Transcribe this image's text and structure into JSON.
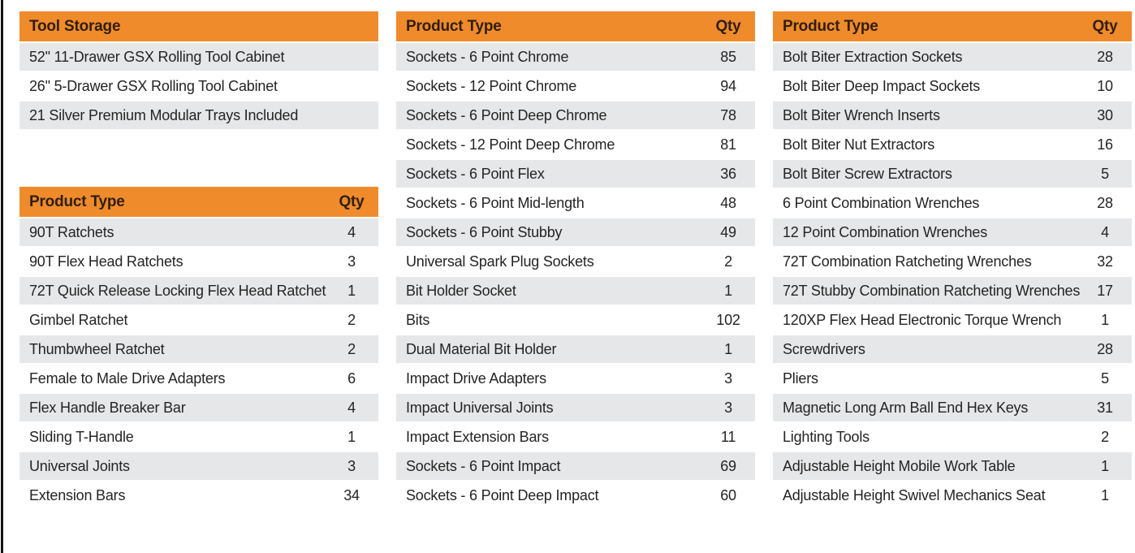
{
  "colors": {
    "header_bg": "#EF8B2B",
    "header_text": "#301E08",
    "row_alt_bg": "#E6E7E8",
    "row_text": "#242424",
    "edge_line": "#141414"
  },
  "tables": {
    "tool_storage": {
      "title": "Tool Storage",
      "qty_label": null,
      "rows": [
        {
          "type": "52\" 11-Drawer GSX Rolling Tool Cabinet"
        },
        {
          "type": "26\" 5-Drawer GSX Rolling Tool Cabinet"
        },
        {
          "type": "21 Silver Premium Modular Trays Included"
        }
      ]
    },
    "left_products": {
      "title": "Product Type",
      "qty_label": "Qty",
      "rows": [
        {
          "type": "90T Ratchets",
          "qty": "4"
        },
        {
          "type": "90T Flex Head Ratchets",
          "qty": "3"
        },
        {
          "type": "72T Quick Release Locking Flex Head Ratchet",
          "qty": "1"
        },
        {
          "type": "Gimbel Ratchet",
          "qty": "2"
        },
        {
          "type": "Thumbwheel Ratchet",
          "qty": "2"
        },
        {
          "type": "Female to Male Drive Adapters",
          "qty": "6"
        },
        {
          "type": "Flex Handle Breaker Bar",
          "qty": "4"
        },
        {
          "type": "Sliding T-Handle",
          "qty": "1"
        },
        {
          "type": "Universal Joints",
          "qty": "3"
        },
        {
          "type": "Extension Bars",
          "qty": "34"
        }
      ]
    },
    "middle_products": {
      "title": "Product Type",
      "qty_label": "Qty",
      "rows": [
        {
          "type": "Sockets - 6 Point Chrome",
          "qty": "85"
        },
        {
          "type": "Sockets - 12 Point Chrome",
          "qty": "94"
        },
        {
          "type": "Sockets - 6 Point Deep Chrome",
          "qty": "78"
        },
        {
          "type": "Sockets - 12 Point Deep Chrome",
          "qty": "81"
        },
        {
          "type": "Sockets - 6 Point Flex",
          "qty": "36"
        },
        {
          "type": "Sockets - 6 Point Mid-length",
          "qty": "48"
        },
        {
          "type": "Sockets - 6 Point Stubby",
          "qty": "49"
        },
        {
          "type": "Universal Spark Plug Sockets",
          "qty": "2"
        },
        {
          "type": "Bit Holder Socket",
          "qty": "1"
        },
        {
          "type": "Bits",
          "qty": "102"
        },
        {
          "type": "Dual Material Bit Holder",
          "qty": "1"
        },
        {
          "type": "Impact Drive Adapters",
          "qty": "3"
        },
        {
          "type": "Impact Universal Joints",
          "qty": "3"
        },
        {
          "type": "Impact Extension Bars",
          "qty": "11"
        },
        {
          "type": "Sockets - 6 Point Impact",
          "qty": "69"
        },
        {
          "type": "Sockets - 6 Point Deep Impact",
          "qty": "60"
        }
      ]
    },
    "right_products": {
      "title": "Product Type",
      "qty_label": "Qty",
      "rows": [
        {
          "type": "Bolt Biter Extraction Sockets",
          "qty": "28"
        },
        {
          "type": "Bolt Biter Deep Impact Sockets",
          "qty": "10"
        },
        {
          "type": "Bolt Biter Wrench Inserts",
          "qty": "30"
        },
        {
          "type": "Bolt Biter Nut Extractors",
          "qty": "16"
        },
        {
          "type": "Bolt Biter Screw Extractors",
          "qty": "5"
        },
        {
          "type": "6 Point Combination Wrenches",
          "qty": "28"
        },
        {
          "type": "12 Point Combination Wrenches",
          "qty": "4"
        },
        {
          "type": "72T Combination Ratcheting Wrenches",
          "qty": "32"
        },
        {
          "type": "72T Stubby Combination Ratcheting Wrenches",
          "qty": "17"
        },
        {
          "type": "120XP Flex Head Electronic Torque Wrench",
          "qty": "1"
        },
        {
          "type": "Screwdrivers",
          "qty": "28"
        },
        {
          "type": "Pliers",
          "qty": "5"
        },
        {
          "type": "Magnetic Long Arm Ball End Hex Keys",
          "qty": "31"
        },
        {
          "type": "Lighting Tools",
          "qty": "2"
        },
        {
          "type": "Adjustable Height Mobile Work Table",
          "qty": "1"
        },
        {
          "type": "Adjustable Height Swivel Mechanics Seat",
          "qty": "1"
        }
      ]
    }
  }
}
